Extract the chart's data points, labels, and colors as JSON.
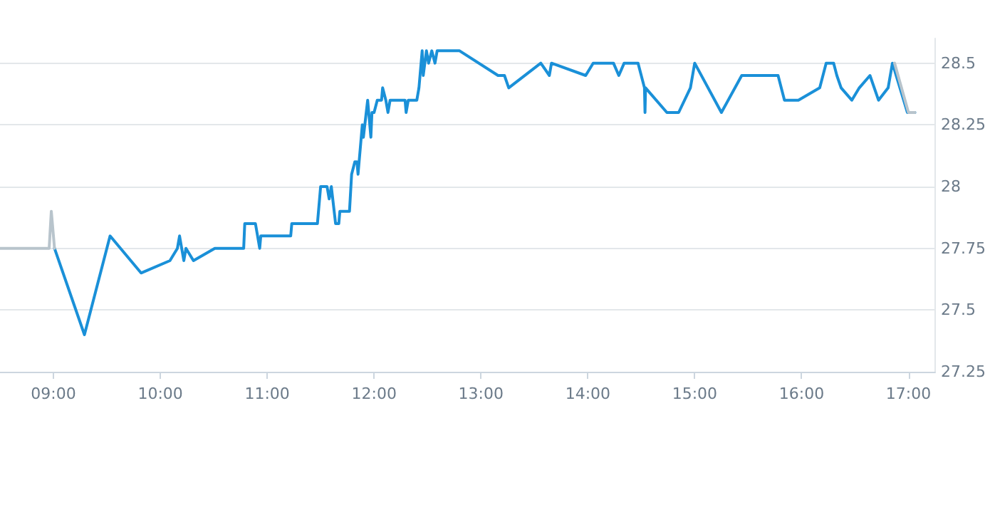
{
  "chart_data": {
    "type": "line",
    "xlim": [
      8.5,
      17.25
    ],
    "ylim": [
      27.25,
      28.6
    ],
    "xticks": [
      {
        "value": 9,
        "label": "09:00"
      },
      {
        "value": 10,
        "label": "10:00"
      },
      {
        "value": 11,
        "label": "11:00"
      },
      {
        "value": 12,
        "label": "12:00"
      },
      {
        "value": 13,
        "label": "13:00"
      },
      {
        "value": 14,
        "label": "14:00"
      },
      {
        "value": 15,
        "label": "15:00"
      },
      {
        "value": 16,
        "label": "16:00"
      },
      {
        "value": 17,
        "label": "17:00"
      }
    ],
    "yticks": [
      27.25,
      27.5,
      27.75,
      28,
      28.25,
      28.5
    ],
    "grid": "y",
    "marker": "none",
    "line_style": "solid",
    "series": [
      {
        "color": "#b8c4cc",
        "x": [
          8.5,
          8.96,
          8.98,
          9.01
        ],
        "values": [
          27.75,
          27.75,
          27.9,
          27.75
        ]
      },
      {
        "color": "#b8c4cc",
        "x": [
          16.87,
          17.0,
          17.06
        ],
        "values": [
          28.5,
          28.3,
          28.3
        ]
      },
      {
        "color": "#1a90d8",
        "x": [
          9.01,
          9.29,
          9.53,
          9.82,
          10.09,
          10.16,
          10.18,
          10.22,
          10.24,
          10.31,
          10.51,
          10.78,
          10.79,
          10.89,
          10.93,
          10.94,
          11.22,
          11.23,
          11.47,
          11.5,
          11.56,
          11.58,
          11.6,
          11.64,
          11.67,
          11.68,
          11.77,
          11.79,
          11.82,
          11.84,
          11.85,
          11.88,
          11.89,
          11.9,
          11.94,
          11.97,
          11.98,
          12.0,
          12.03,
          12.07,
          12.08,
          12.11,
          12.13,
          12.15,
          12.29,
          12.3,
          12.32,
          12.4,
          12.42,
          12.45,
          12.46,
          12.49,
          12.51,
          12.54,
          12.57,
          12.59,
          12.8,
          13.16,
          13.22,
          13.26,
          13.56,
          13.64,
          13.66,
          13.98,
          14.05,
          14.24,
          14.29,
          14.34,
          14.47,
          14.53,
          14.535,
          14.54,
          14.74,
          14.85,
          14.96,
          15.0,
          15.25,
          15.44,
          15.78,
          15.84,
          15.97,
          16.17,
          16.23,
          16.3,
          16.33,
          16.37,
          16.47,
          16.54,
          16.64,
          16.72,
          16.81,
          16.85,
          16.99,
          17.06
        ],
        "values": [
          27.75,
          27.4,
          27.8,
          27.65,
          27.7,
          27.75,
          27.8,
          27.7,
          27.75,
          27.7,
          27.75,
          27.75,
          27.85,
          27.85,
          27.75,
          27.8,
          27.8,
          27.85,
          27.85,
          28.0,
          28.0,
          27.95,
          28.0,
          27.85,
          27.85,
          27.9,
          27.9,
          28.05,
          28.1,
          28.1,
          28.05,
          28.2,
          28.25,
          28.2,
          28.35,
          28.2,
          28.3,
          28.3,
          28.35,
          28.35,
          28.4,
          28.35,
          28.3,
          28.35,
          28.35,
          28.3,
          28.35,
          28.35,
          28.4,
          28.55,
          28.45,
          28.55,
          28.5,
          28.55,
          28.5,
          28.55,
          28.55,
          28.45,
          28.45,
          28.4,
          28.5,
          28.45,
          28.5,
          28.45,
          28.5,
          28.5,
          28.45,
          28.5,
          28.5,
          28.4,
          28.3,
          28.4,
          28.3,
          28.3,
          28.4,
          28.5,
          28.3,
          28.45,
          28.45,
          28.35,
          28.35,
          28.4,
          28.5,
          28.5,
          28.45,
          28.4,
          28.35,
          28.4,
          28.45,
          28.35,
          28.4,
          28.5,
          28.3,
          28.3
        ]
      }
    ]
  }
}
